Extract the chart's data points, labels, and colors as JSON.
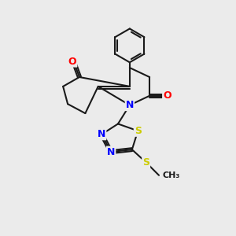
{
  "bg_color": "#ebebeb",
  "bond_color": "#1a1a1a",
  "bond_width": 1.5,
  "N_color": "#0000ff",
  "O_color": "#ff0000",
  "S_color": "#cccc00",
  "fig_size": [
    3.0,
    3.0
  ],
  "dpi": 100,
  "xlim": [
    0,
    10
  ],
  "ylim": [
    0,
    10
  ]
}
